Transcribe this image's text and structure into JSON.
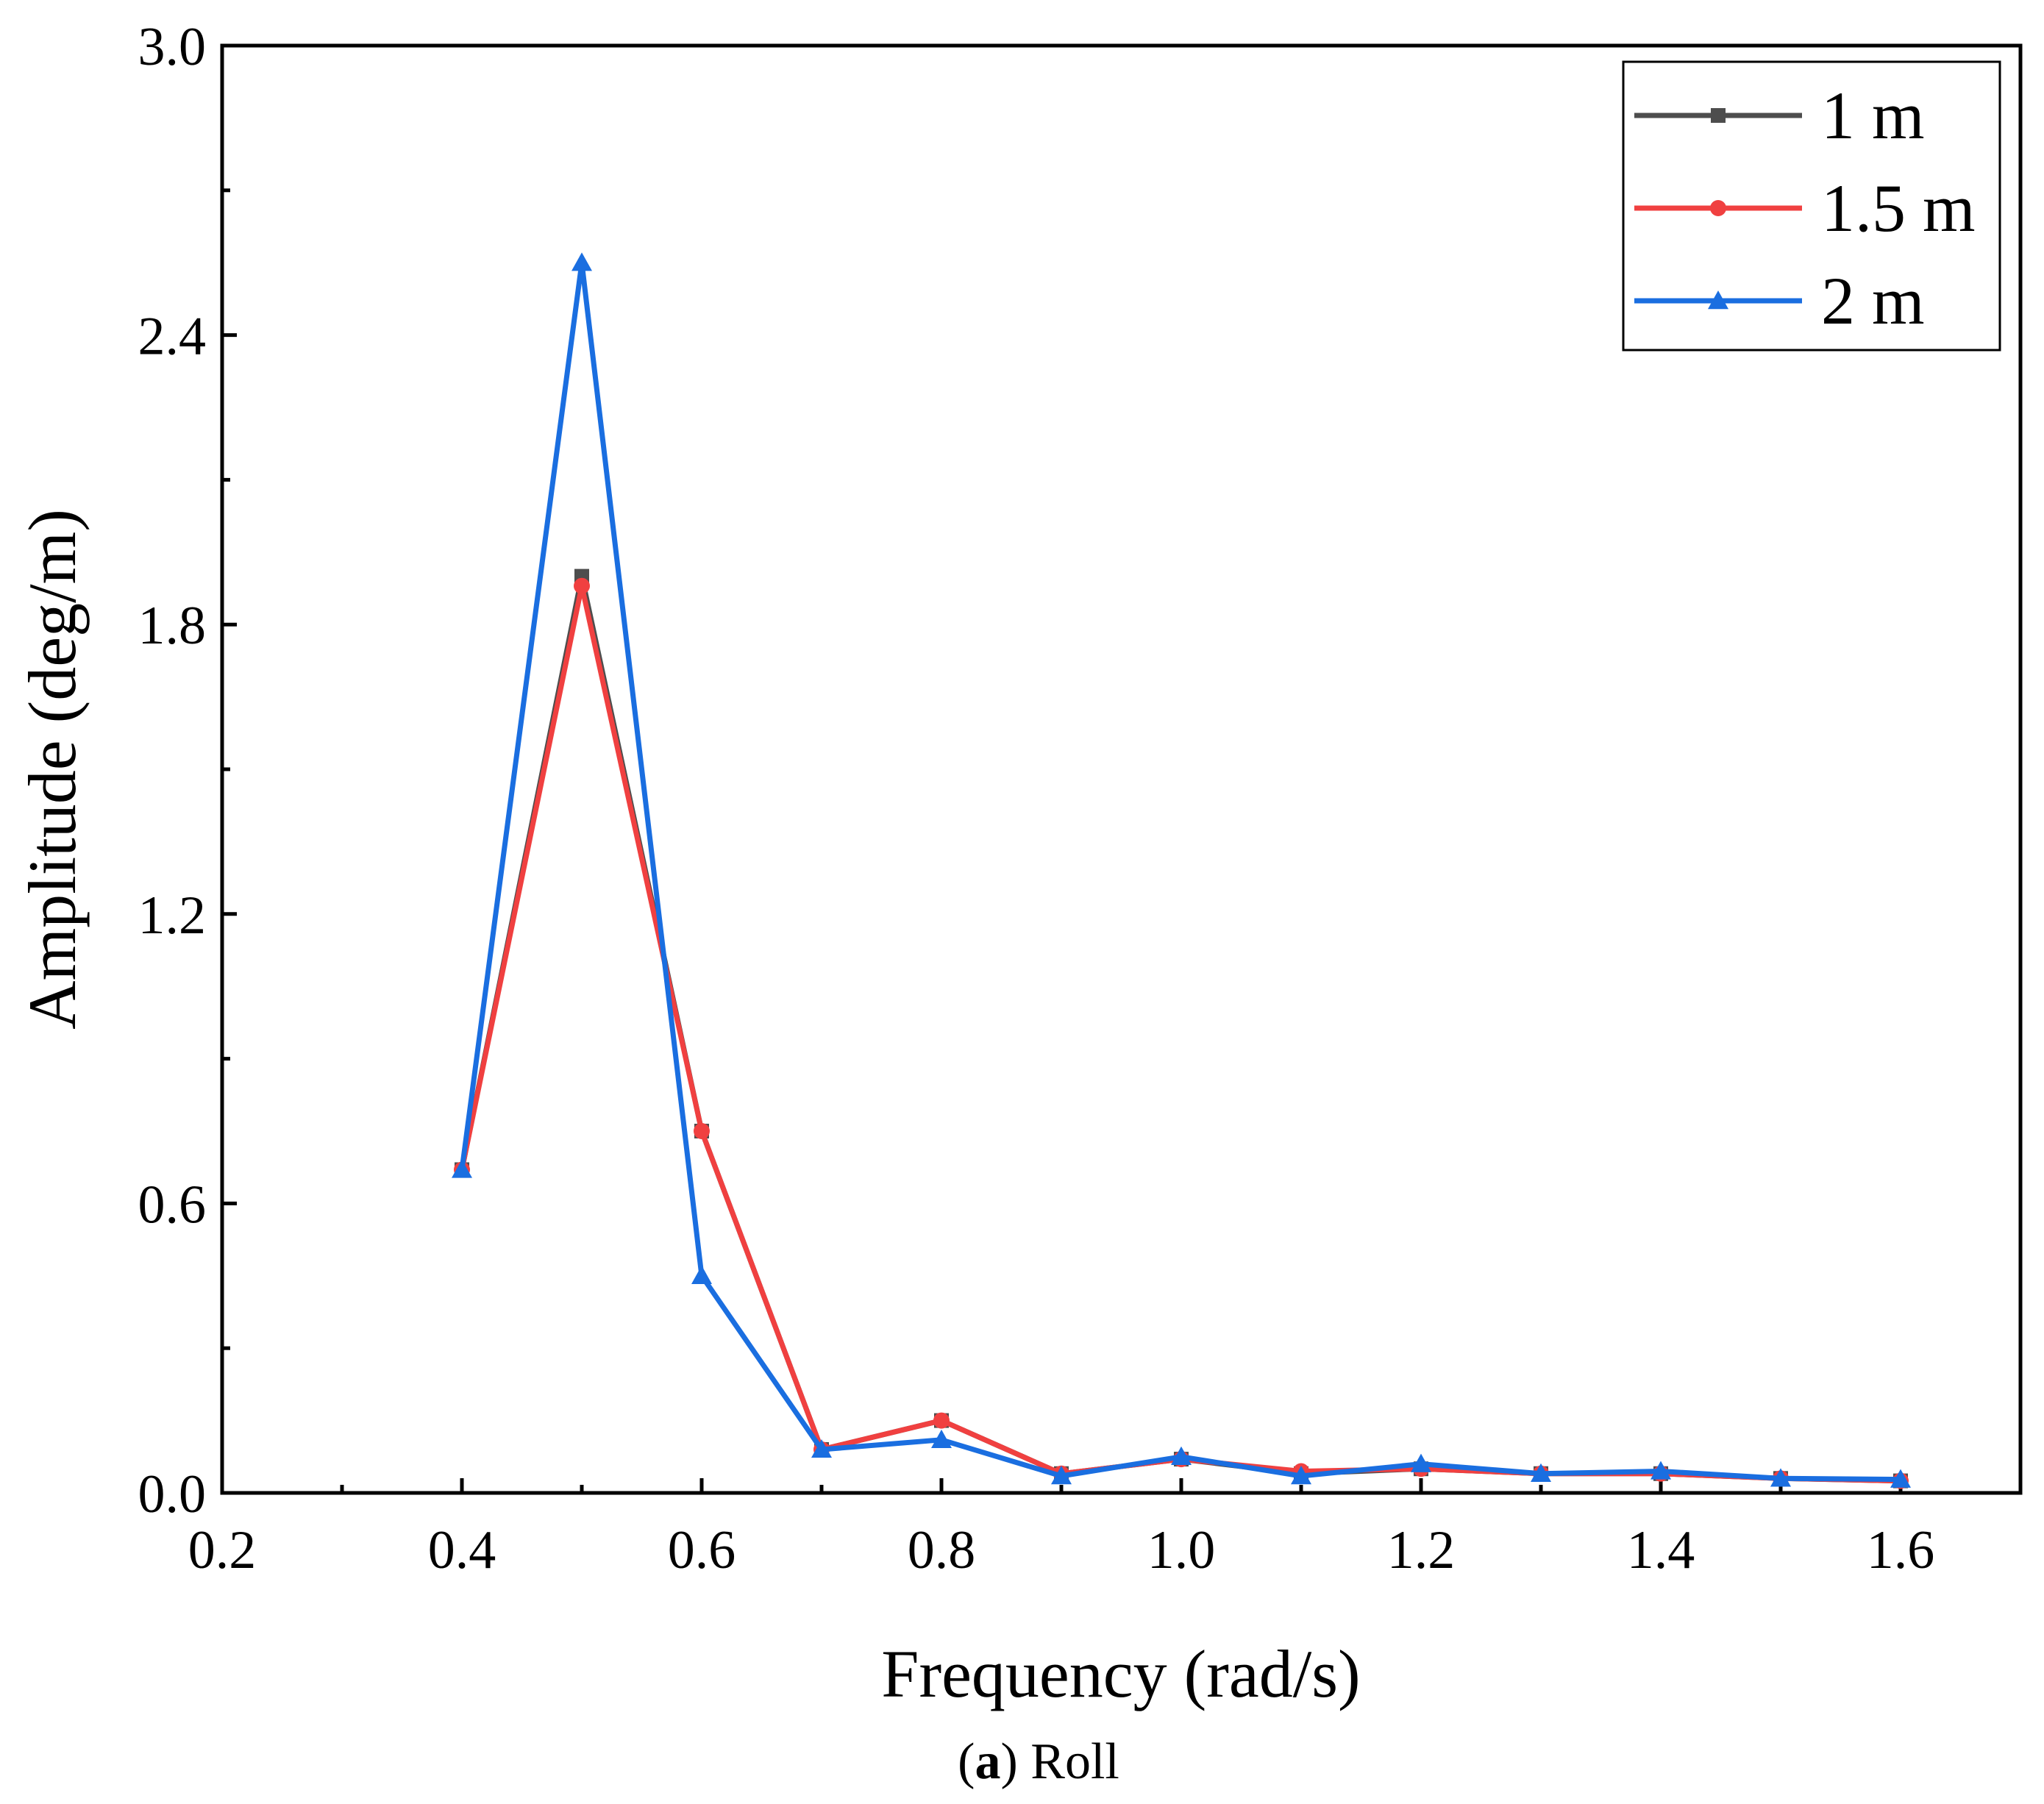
{
  "chart_data": {
    "type": "line",
    "title": "",
    "caption": {
      "prefix": "(",
      "letter": "a",
      "suffix": ") Roll"
    },
    "xlabel": "Frequency (rad/s)",
    "ylabel": "Amplitude (deg/m)",
    "xlim": [
      0.2,
      1.7
    ],
    "ylim": [
      0.0,
      3.0
    ],
    "xticks": [
      0.2,
      0.4,
      0.6,
      0.8,
      1.0,
      1.2,
      1.4,
      1.6
    ],
    "xtick_labels": [
      "0.2",
      "0.4",
      "0.6",
      "0.8",
      "1.0",
      "1.2",
      "1.4",
      "1.6"
    ],
    "x_minor_ticks": [
      0.3,
      0.5,
      0.7,
      0.9,
      1.1,
      1.3,
      1.5
    ],
    "yticks": [
      0.0,
      0.6,
      1.2,
      1.8,
      2.4,
      3.0
    ],
    "ytick_labels": [
      "0.0",
      "0.6",
      "1.2",
      "1.8",
      "2.4",
      "3.0"
    ],
    "y_minor_ticks": [
      0.3,
      0.9,
      1.5,
      2.1,
      2.7
    ],
    "grid": false,
    "legend_position": "top-right",
    "x": [
      0.4,
      0.5,
      0.6,
      0.7,
      0.8,
      0.9,
      1.0,
      1.1,
      1.2,
      1.3,
      1.4,
      1.5,
      1.6
    ],
    "series": [
      {
        "name": "1 m",
        "color": "#4d4d4d",
        "marker": "square",
        "values": [
          0.67,
          1.9,
          0.75,
          0.09,
          0.15,
          0.04,
          0.07,
          0.04,
          0.05,
          0.04,
          0.04,
          0.03,
          0.025
        ]
      },
      {
        "name": "1.5 m",
        "color": "#f04040",
        "marker": "circle",
        "values": [
          0.67,
          1.88,
          0.75,
          0.09,
          0.15,
          0.04,
          0.07,
          0.045,
          0.05,
          0.04,
          0.04,
          0.03,
          0.025
        ]
      },
      {
        "name": "2 m",
        "color": "#1a6ee0",
        "marker": "triangle",
        "values": [
          0.67,
          2.55,
          0.45,
          0.09,
          0.11,
          0.035,
          0.075,
          0.035,
          0.06,
          0.04,
          0.045,
          0.03,
          0.028
        ]
      }
    ]
  }
}
